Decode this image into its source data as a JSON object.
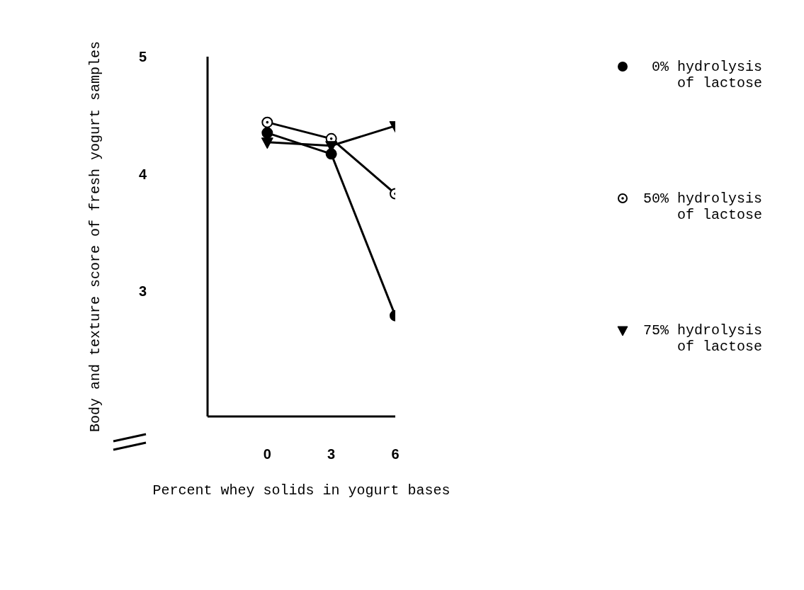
{
  "chart_data": {
    "type": "line",
    "xlabel": "Percent whey solids in yogurt bases",
    "ylabel": "Body and texture score of fresh yogurt samples",
    "x": [
      0,
      3,
      6
    ],
    "xlim": [
      -2.8,
      6
    ],
    "xticks": [
      0,
      3,
      6
    ],
    "ylim": [
      1.93,
      5
    ],
    "yticks": [
      3,
      4,
      5
    ],
    "grid": false,
    "legend": "right",
    "line_style": "solid",
    "series": [
      {
        "name": "0% hydrolysis of lactose",
        "color": "#000000",
        "marker": "circle",
        "values": [
          4.35,
          4.17,
          2.79
        ]
      },
      {
        "name": "50% hydrolysis of lactose",
        "color": "#000000",
        "marker": "circle-dot",
        "values": [
          4.44,
          4.3,
          3.83
        ]
      },
      {
        "name": "75% hydrolysis of lactose",
        "color": "#000000",
        "marker": "triangle",
        "values": [
          4.27,
          4.24,
          4.41
        ]
      }
    ]
  }
}
